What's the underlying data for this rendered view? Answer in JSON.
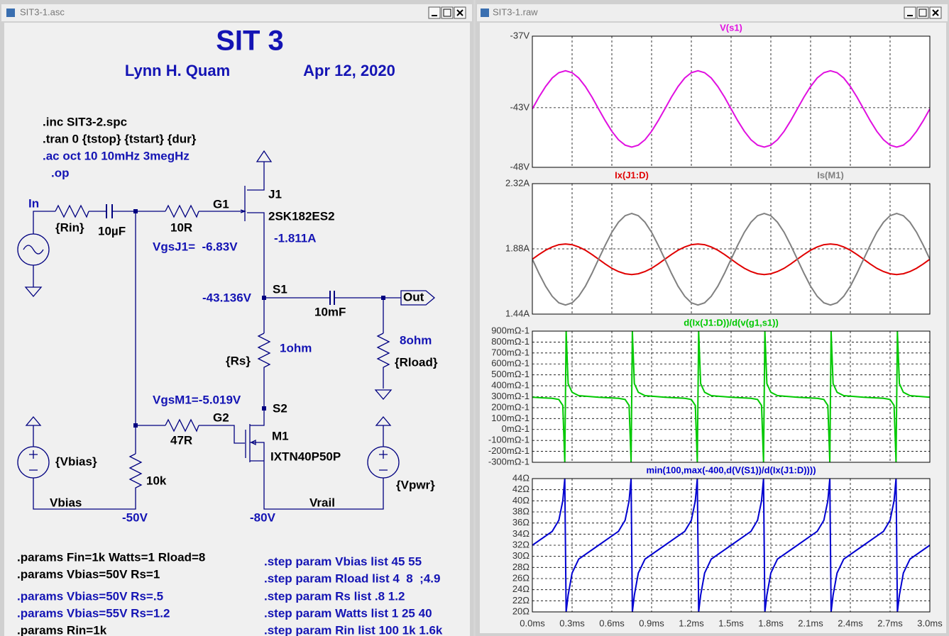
{
  "schematic": {
    "window_title": "SIT3-1.asc",
    "labels": [
      "SIT 3",
      "Lynn H. Quam",
      "Apr 12, 2020",
      ".inc SIT3-2.spc",
      ".tran 0 {tstop} {tstart} {dur}",
      ".ac oct 10 10mHz 3megHz",
      ".op",
      "In",
      "{Rin}",
      "10µF",
      "10R",
      "G1",
      "J1",
      "2SK182ES2",
      "-1.811A",
      "VgsJ1=  -6.83V",
      "S1",
      "-43.136V",
      "Out",
      "10mF",
      "8ohm",
      "1ohm",
      "{Rs}",
      "{Rload}",
      "VgsM1=-5.019V",
      "S2",
      "G2",
      "M1",
      "47R",
      "IXTN40P50P",
      "{Vbias}",
      "10k",
      "{Vpwr}",
      "Vbias",
      "Vrail",
      "-50V",
      "-80V",
      ".params Fin=1k Watts=1 Rload=8",
      ".params Vbias=50V Rs=1",
      ".params Vbias=50V Rs=.5",
      ".params Vbias=55V Rs=1.2",
      ".params Rin=1k",
      ".step param Vbias list 45 55",
      ".step param Rload list 4  8  ;4.9",
      ".step param Rs list .8 1.2",
      ".step param Watts list 1 25 40",
      ".step param Rin list 100 1k 1.6k"
    ]
  },
  "waveform": {
    "window_title": "SIT3-1.raw",
    "xlim": [
      0,
      3
    ],
    "xticks": [
      {
        "value": 0,
        "label": "0.0ms"
      },
      {
        "value": 0.3,
        "label": "0.3ms"
      },
      {
        "value": 0.6,
        "label": "0.6ms"
      },
      {
        "value": 0.9,
        "label": "0.9ms"
      },
      {
        "value": 1.2,
        "label": "1.2ms"
      },
      {
        "value": 1.5,
        "label": "1.5ms"
      },
      {
        "value": 1.8,
        "label": "1.8ms"
      },
      {
        "value": 2.1,
        "label": "2.1ms"
      },
      {
        "value": 2.4,
        "label": "2.4ms"
      },
      {
        "value": 2.7,
        "label": "2.7ms"
      },
      {
        "value": 3,
        "label": "3.0ms"
      }
    ],
    "plots": [
      {
        "ylim": [
          -48,
          -37
        ],
        "yticks": [
          {
            "value": -37,
            "label": "-37V"
          },
          {
            "value": -43,
            "label": "-43V"
          },
          {
            "value": -48,
            "label": "-48V"
          }
        ],
        "grid": true,
        "x": [
          0,
          0.05,
          0.1,
          0.15,
          0.2,
          0.25,
          0.3,
          0.35,
          0.4,
          0.45,
          0.5,
          0.55,
          0.6,
          0.65,
          0.7,
          0.75,
          0.8,
          0.85,
          0.9,
          0.95,
          1,
          1.05,
          1.1,
          1.15,
          1.2,
          1.25,
          1.3,
          1.35,
          1.4,
          1.45,
          1.5,
          1.55,
          1.6,
          1.65,
          1.7,
          1.75,
          1.8,
          1.85,
          1.9,
          1.95,
          2,
          2.05,
          2.1,
          2.15,
          2.2,
          2.25,
          2.3,
          2.35,
          2.4,
          2.45,
          2.5,
          2.55,
          2.6,
          2.65,
          2.7,
          2.75,
          2.8,
          2.85,
          2.9,
          2.95,
          3
        ],
        "series": [
          {
            "name": "V(s1)",
            "color": "#e010e0",
            "values": [
              -43.1,
              -42.11,
              -41.22,
              -40.51,
              -40.06,
              -39.9,
              -40.06,
              -40.51,
              -41.22,
              -42.11,
              -43.1,
              -44.09,
              -44.98,
              -45.69,
              -46.14,
              -46.3,
              -46.14,
              -45.69,
              -44.98,
              -44.09,
              -43.1,
              -42.11,
              -41.22,
              -40.51,
              -40.06,
              -39.9,
              -40.06,
              -40.51,
              -41.22,
              -42.11,
              -43.1,
              -44.09,
              -44.98,
              -45.69,
              -46.14,
              -46.3,
              -46.14,
              -45.69,
              -44.98,
              -44.09,
              -43.1,
              -42.11,
              -41.22,
              -40.51,
              -40.06,
              -39.9,
              -40.06,
              -40.51,
              -41.22,
              -42.11,
              -43.1,
              -44.09,
              -44.98,
              -45.69,
              -46.14,
              -46.3,
              -46.14,
              -45.69,
              -44.98,
              -44.09,
              -43.1
            ]
          }
        ]
      },
      {
        "ylim": [
          1.44,
          2.32
        ],
        "yticks": [
          {
            "value": 2.32,
            "label": "2.32A"
          },
          {
            "value": 1.88,
            "label": "1.88A"
          },
          {
            "value": 1.44,
            "label": "1.44A"
          }
        ],
        "grid": true,
        "x": [
          0,
          0.05,
          0.1,
          0.15,
          0.2,
          0.25,
          0.3,
          0.35,
          0.4,
          0.45,
          0.5,
          0.55,
          0.6,
          0.65,
          0.7,
          0.75,
          0.8,
          0.85,
          0.9,
          0.95,
          1,
          1.05,
          1.1,
          1.15,
          1.2,
          1.25,
          1.3,
          1.35,
          1.4,
          1.45,
          1.5,
          1.55,
          1.6,
          1.65,
          1.7,
          1.75,
          1.8,
          1.85,
          1.9,
          1.95,
          2,
          2.05,
          2.1,
          2.15,
          2.2,
          2.25,
          2.3,
          2.35,
          2.4,
          2.45,
          2.5,
          2.55,
          2.6,
          2.65,
          2.7,
          2.75,
          2.8,
          2.85,
          2.9,
          2.95,
          3
        ],
        "series": [
          {
            "name": "Ix(J1:D)",
            "color": "#e00000",
            "values": [
              1.81,
              1.842,
              1.871,
              1.893,
              1.908,
              1.913,
              1.908,
              1.893,
              1.871,
              1.842,
              1.81,
              1.778,
              1.749,
              1.727,
              1.712,
              1.707,
              1.712,
              1.727,
              1.749,
              1.778,
              1.81,
              1.842,
              1.871,
              1.893,
              1.908,
              1.913,
              1.908,
              1.893,
              1.871,
              1.842,
              1.81,
              1.778,
              1.749,
              1.727,
              1.712,
              1.707,
              1.712,
              1.727,
              1.749,
              1.778,
              1.81,
              1.842,
              1.871,
              1.893,
              1.908,
              1.913,
              1.908,
              1.893,
              1.871,
              1.842,
              1.81,
              1.778,
              1.749,
              1.727,
              1.712,
              1.707,
              1.712,
              1.727,
              1.749,
              1.778,
              1.81
            ]
          },
          {
            "name": "Is(M1)",
            "color": "#808080",
            "values": [
              1.81,
              1.715,
              1.628,
              1.56,
              1.516,
              1.501,
              1.516,
              1.56,
              1.628,
              1.715,
              1.81,
              1.905,
              1.992,
              2.06,
              2.104,
              2.119,
              2.104,
              2.06,
              1.992,
              1.905,
              1.81,
              1.715,
              1.628,
              1.56,
              1.516,
              1.501,
              1.516,
              1.56,
              1.628,
              1.715,
              1.81,
              1.905,
              1.992,
              2.06,
              2.104,
              2.119,
              2.104,
              2.06,
              1.992,
              1.905,
              1.81,
              1.715,
              1.628,
              1.56,
              1.516,
              1.501,
              1.516,
              1.56,
              1.628,
              1.715,
              1.81,
              1.905,
              1.992,
              2.06,
              2.104,
              2.119,
              2.104,
              2.06,
              1.992,
              1.905,
              1.81
            ]
          }
        ]
      },
      {
        "ylim": [
          -300,
          900
        ],
        "yticks": [
          {
            "value": 900,
            "label": "900mΩ-1"
          },
          {
            "value": 800,
            "label": "800mΩ-1"
          },
          {
            "value": 700,
            "label": "700mΩ-1"
          },
          {
            "value": 600,
            "label": "600mΩ-1"
          },
          {
            "value": 500,
            "label": "500mΩ-1"
          },
          {
            "value": 400,
            "label": "400mΩ-1"
          },
          {
            "value": 300,
            "label": "300mΩ-1"
          },
          {
            "value": 200,
            "label": "200mΩ-1"
          },
          {
            "value": 100,
            "label": "100mΩ-1"
          },
          {
            "value": 0,
            "label": "0mΩ-1"
          },
          {
            "value": -100,
            "label": "-100mΩ-1"
          },
          {
            "value": -200,
            "label": "-200mΩ-1"
          },
          {
            "value": -300,
            "label": "-300mΩ-1"
          }
        ],
        "grid": true,
        "x": [
          0,
          0.15,
          0.2,
          0.23,
          0.245,
          0.255,
          0.27,
          0.3,
          0.35,
          0.5,
          0.65,
          0.7,
          0.73,
          0.745,
          0.755,
          0.77,
          0.8,
          0.85,
          1,
          1.15,
          1.2,
          1.23,
          1.245,
          1.255,
          1.27,
          1.3,
          1.35,
          1.5,
          1.65,
          1.7,
          1.73,
          1.745,
          1.755,
          1.77,
          1.8,
          1.85,
          2,
          2.15,
          2.2,
          2.23,
          2.245,
          2.255,
          2.27,
          2.3,
          2.35,
          2.5,
          2.65,
          2.7,
          2.73,
          2.745,
          2.755,
          2.77,
          2.8,
          2.85,
          3
        ],
        "series": [
          {
            "name": "d(Ix(J1:D))/d(v(g1,s1))",
            "color": "#00c800",
            "values": [
              295,
              285,
              275,
              220,
              -300,
              900,
              420,
              340,
              310,
              295,
              285,
              275,
              220,
              -300,
              900,
              420,
              340,
              310,
              295,
              285,
              275,
              220,
              -300,
              900,
              420,
              340,
              310,
              295,
              285,
              275,
              220,
              -300,
              900,
              420,
              340,
              310,
              295,
              285,
              275,
              220,
              -300,
              900,
              420,
              340,
              310,
              295,
              285,
              275,
              220,
              -300,
              900,
              420,
              340,
              310,
              295
            ]
          }
        ]
      },
      {
        "ylim": [
          20,
          44
        ],
        "yticks": [
          {
            "value": 44,
            "label": "44Ω"
          },
          {
            "value": 42,
            "label": "42Ω"
          },
          {
            "value": 40,
            "label": "40Ω"
          },
          {
            "value": 38,
            "label": "38Ω"
          },
          {
            "value": 36,
            "label": "36Ω"
          },
          {
            "value": 34,
            "label": "34Ω"
          },
          {
            "value": 32,
            "label": "32Ω"
          },
          {
            "value": 30,
            "label": "30Ω"
          },
          {
            "value": 28,
            "label": "28Ω"
          },
          {
            "value": 26,
            "label": "26Ω"
          },
          {
            "value": 24,
            "label": "24Ω"
          },
          {
            "value": 22,
            "label": "22Ω"
          },
          {
            "value": 20,
            "label": "20Ω"
          }
        ],
        "grid": true,
        "x": [
          0,
          0.15,
          0.2,
          0.23,
          0.245,
          0.255,
          0.27,
          0.3,
          0.35,
          0.5,
          0.65,
          0.7,
          0.73,
          0.745,
          0.755,
          0.77,
          0.8,
          0.85,
          1,
          1.15,
          1.2,
          1.23,
          1.245,
          1.255,
          1.27,
          1.3,
          1.35,
          1.5,
          1.65,
          1.7,
          1.73,
          1.745,
          1.755,
          1.77,
          1.8,
          1.85,
          2,
          2.15,
          2.2,
          2.23,
          2.245,
          2.255,
          2.27,
          2.3,
          2.35,
          2.5,
          2.65,
          2.7,
          2.73,
          2.745,
          2.755,
          2.77,
          2.8,
          2.85,
          3
        ],
        "series": [
          {
            "name": "min(100,max(-400,d(V(S1))/d(Ix(J1:D))))",
            "color": "#0000d0",
            "values": [
              32,
              34.5,
              36.5,
              40,
              44,
              20,
              23,
              27,
              29.5,
              32,
              34.5,
              36.5,
              40,
              44,
              20,
              23,
              27,
              29.5,
              32,
              34.5,
              36.5,
              40,
              44,
              20,
              23,
              27,
              29.5,
              32,
              34.5,
              36.5,
              40,
              44,
              20,
              23,
              27,
              29.5,
              32,
              34.5,
              36.5,
              40,
              44,
              20,
              23,
              27,
              29.5,
              32,
              34.5,
              36.5,
              40,
              44,
              20,
              23,
              27,
              29.5,
              32
            ]
          }
        ]
      }
    ]
  }
}
